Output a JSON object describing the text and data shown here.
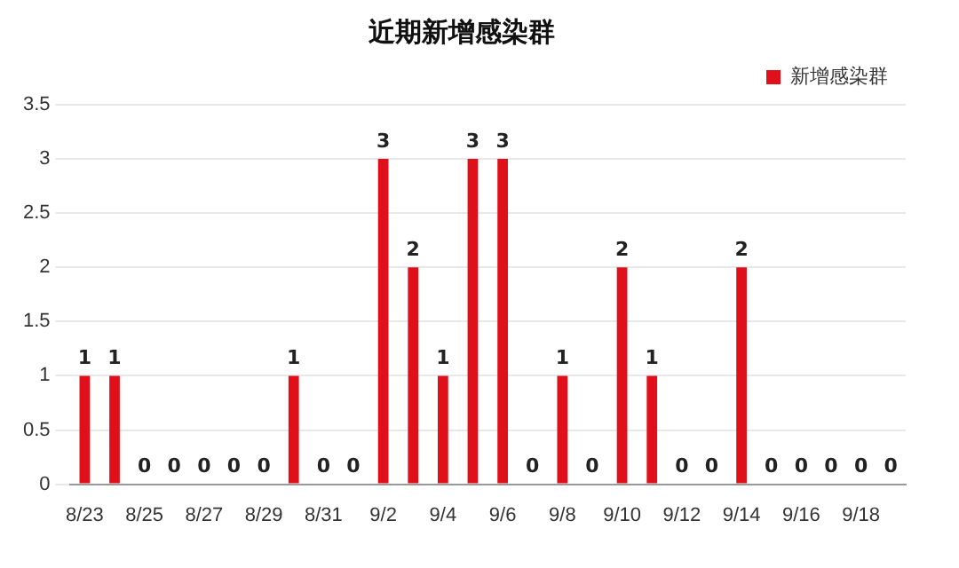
{
  "chart_data": {
    "type": "bar",
    "title": "近期新增感染群",
    "categories": [
      "8/23",
      null,
      "8/25",
      null,
      "8/27",
      null,
      "8/29",
      null,
      "8/31",
      null,
      "9/2",
      null,
      "9/4",
      null,
      "9/6",
      null,
      "9/8",
      null,
      "9/10",
      null,
      "9/12",
      null,
      "9/14",
      null,
      "9/16",
      null,
      "9/18",
      null
    ],
    "series": [
      {
        "name": "新增感染群",
        "color": "#e0101a",
        "values": [
          1,
          1,
          0,
          0,
          0,
          0,
          0,
          1,
          0,
          0,
          3,
          2,
          1,
          3,
          3,
          0,
          1,
          0,
          2,
          1,
          0,
          0,
          2,
          0,
          0,
          0,
          0,
          0
        ]
      }
    ],
    "ylim": [
      0,
      3.5
    ],
    "yticks": [
      0,
      0.5,
      1,
      1.5,
      2,
      2.5,
      3,
      3.5
    ],
    "grid": "y",
    "legend": "top right",
    "data_labels": true
  }
}
